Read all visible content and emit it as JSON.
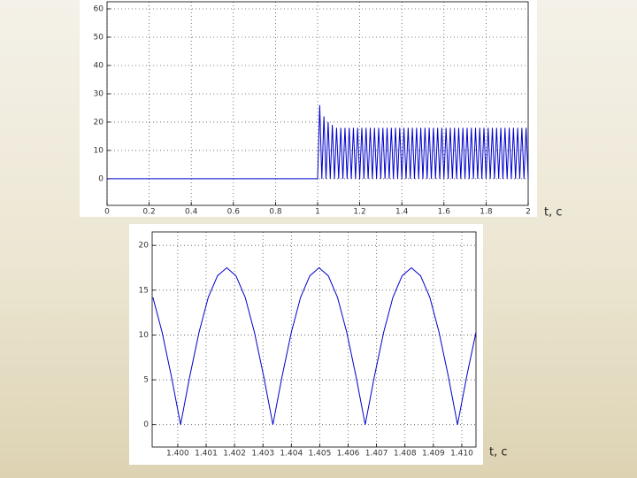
{
  "chart_data": [
    {
      "type": "line",
      "xlabel": "t, c",
      "color": "#0000cc",
      "grid": true,
      "xlim": [
        0,
        2
      ],
      "ylim": [
        -9.4,
        62.5
      ],
      "xticks": [
        0,
        0.2,
        0.4,
        0.6,
        0.8,
        1,
        1.2,
        1.4,
        1.6,
        1.8,
        2
      ],
      "yticks": [
        0,
        10,
        20,
        30,
        40,
        50,
        60
      ],
      "x": [
        0,
        1,
        1.01,
        1.02,
        1.03,
        1.04,
        1.05,
        1.06,
        1.07,
        1.08,
        1.09,
        1.1,
        1.11,
        1.12,
        1.13,
        1.14,
        1.15,
        1.16,
        1.17,
        1.18,
        1.19,
        1.2,
        1.21,
        1.22,
        1.23,
        1.24,
        1.25,
        1.26,
        1.27,
        1.28,
        1.29,
        1.3,
        1.31,
        1.32,
        1.33,
        1.34,
        1.35,
        1.36,
        1.37,
        1.38,
        1.39,
        1.4,
        1.41,
        1.42,
        1.43,
        1.44,
        1.45,
        1.46,
        1.47,
        1.48,
        1.49,
        1.5,
        1.51,
        1.52,
        1.53,
        1.54,
        1.55,
        1.56,
        1.57,
        1.58,
        1.59,
        1.6,
        1.61,
        1.62,
        1.63,
        1.64,
        1.65,
        1.66,
        1.67,
        1.68,
        1.69,
        1.7,
        1.71,
        1.72,
        1.73,
        1.74,
        1.75,
        1.76,
        1.77,
        1.78,
        1.79,
        1.8,
        1.81,
        1.82,
        1.83,
        1.84,
        1.85,
        1.86,
        1.87,
        1.88,
        1.89,
        1.9,
        1.91,
        1.92,
        1.93,
        1.94,
        1.95,
        1.96,
        1.97,
        1.98,
        1.99,
        2
      ],
      "values": [
        0,
        0,
        26,
        0,
        22,
        0,
        20,
        0,
        19,
        0,
        18,
        0,
        18,
        0,
        18,
        0,
        18,
        0,
        18,
        0,
        18,
        0,
        18,
        0,
        18,
        0,
        18,
        0,
        18,
        0,
        18,
        0,
        18,
        0,
        18,
        0,
        18,
        0,
        18,
        0,
        18,
        0,
        18,
        0,
        18,
        0,
        18,
        0,
        18,
        0,
        18,
        0,
        18,
        0,
        18,
        0,
        18,
        0,
        18,
        0,
        18,
        0,
        18,
        0,
        18,
        0,
        18,
        0,
        18,
        0,
        18,
        0,
        18,
        0,
        18,
        0,
        18,
        0,
        18,
        0,
        18,
        0,
        18,
        0,
        18,
        0,
        18,
        0,
        18,
        0,
        18,
        0,
        18,
        0,
        18,
        0,
        18,
        0,
        18,
        0,
        18,
        0
      ]
    },
    {
      "type": "line",
      "xlabel": "t, c",
      "color": "#0000cc",
      "grid": true,
      "xlim": [
        1.3991,
        1.4105
      ],
      "ylim": [
        -2.5,
        21.5
      ],
      "xticks": [
        {
          "value": 1.4,
          "label": "1.400"
        },
        1.401,
        1.402,
        1.403,
        1.404,
        1.405,
        1.406,
        1.407,
        1.408,
        1.409,
        {
          "value": 1.41,
          "label": "1.410"
        }
      ],
      "yticks": [
        0,
        5,
        10,
        15,
        20
      ],
      "x": [
        1.399125,
        1.39945,
        1.399775,
        1.4001,
        1.400425,
        1.40075,
        1.401075,
        1.4014,
        1.401725,
        1.40205,
        1.402375,
        1.4027,
        1.403025,
        1.40335,
        1.403675,
        1.404,
        1.404325,
        1.40465,
        1.404975,
        1.4053,
        1.405625,
        1.40595,
        1.406275,
        1.4066,
        1.406925,
        1.40725,
        1.407575,
        1.4079,
        1.408225,
        1.40855,
        1.408875,
        1.4092,
        1.409525,
        1.40985,
        1.410175,
        1.4105
      ],
      "values": [
        14.2,
        10.3,
        5.4,
        0,
        5.4,
        10.3,
        14.2,
        16.6,
        17.5,
        16.6,
        14.2,
        10.3,
        5.4,
        0,
        5.4,
        10.3,
        14.2,
        16.6,
        17.5,
        16.6,
        14.2,
        10.3,
        5.4,
        0,
        5.4,
        10.3,
        14.2,
        16.6,
        17.5,
        16.6,
        14.2,
        10.3,
        5.4,
        0,
        5.4,
        10.3
      ]
    }
  ]
}
